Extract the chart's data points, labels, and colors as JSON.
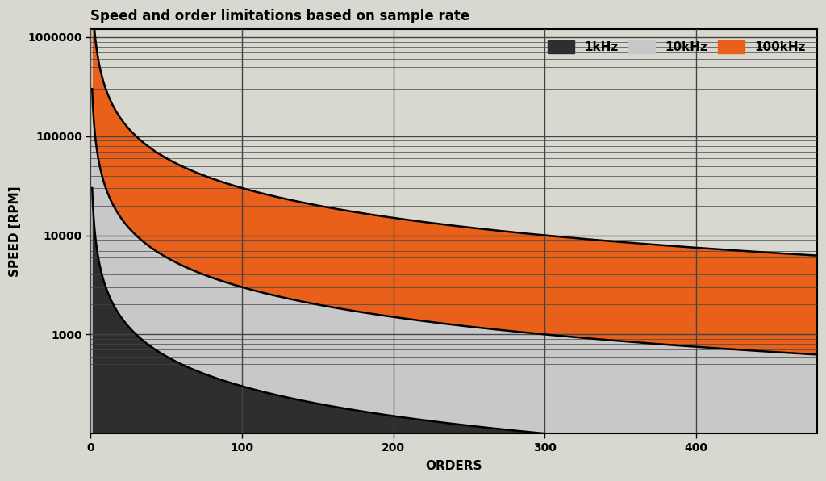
{
  "title": "Speed and order limitations based on sample rate",
  "xlabel": "ORDERS",
  "ylabel": "SPEED [RPM]",
  "sample_rates": [
    1000,
    10000,
    100000
  ],
  "sample_rate_labels": [
    "1kHz",
    "10kHz",
    "100kHz"
  ],
  "colors": [
    "#2e2e2e",
    "#c8c8c8",
    "#e8601a"
  ],
  "order_min": 1,
  "order_max": 480,
  "rpm_min": 100,
  "rpm_max": 1200000,
  "x_ticks": [
    0,
    100,
    200,
    300,
    400
  ],
  "y_ticks": [
    1000,
    10000,
    100000,
    1000000
  ],
  "y_tick_labels": [
    "1000",
    "10000",
    "100000",
    "1000000"
  ],
  "bg_color": "#d8d8d0",
  "grid_color": "#444444",
  "title_fontsize": 12,
  "label_fontsize": 11,
  "tick_fontsize": 10,
  "legend_fontsize": 11,
  "figsize": [
    10.24,
    5.96
  ],
  "dpi": 100
}
